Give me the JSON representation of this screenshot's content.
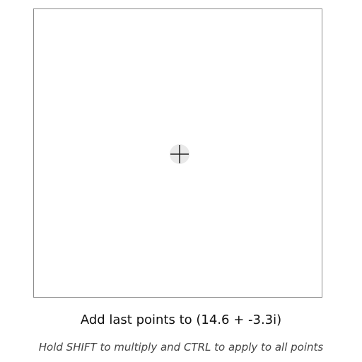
{
  "instruction": {
    "text": "Add last points to (14.6 + -3.3i)"
  },
  "hint": {
    "text": "Hold SHIFT to multiply and CTRL to apply to all points"
  },
  "canvas": {
    "center_icon": "crosshair-icon"
  },
  "colors": {
    "frame_border": "#8c8c8c",
    "handle_fill": "#e9e9e9",
    "crosshair": "#222222"
  }
}
